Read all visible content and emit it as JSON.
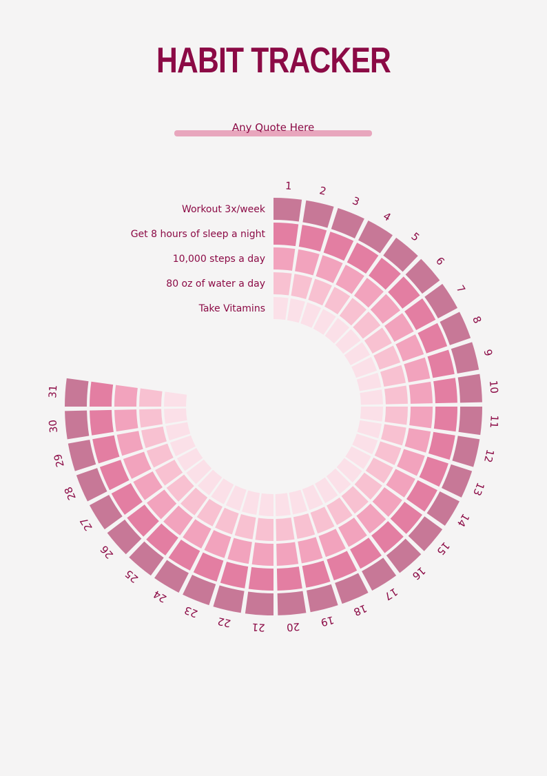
{
  "title": "HABIT TRACKER",
  "quote": "Any Quote Here",
  "colors": {
    "background": "#f5f4f4",
    "text": "#8b0a45",
    "quote_bar": "#e8a6bd",
    "rings": [
      "#c77897",
      "#e37ea2",
      "#f2a3bd",
      "#f8c1d1",
      "#fbe0e8"
    ]
  },
  "habits": [
    "Workout 3x/week",
    "Get 8 hours of sleep a night",
    "10,000 steps a day",
    "80 oz of water a day",
    "Take Vitamins"
  ],
  "days": [
    "1",
    "2",
    "3",
    "4",
    "5",
    "6",
    "7",
    "8",
    "9",
    "10",
    "11",
    "12",
    "13",
    "14",
    "15",
    "16",
    "17",
    "18",
    "19",
    "20",
    "21",
    "22",
    "23",
    "24",
    "25",
    "26",
    "27",
    "28",
    "29",
    "30",
    "31"
  ]
}
